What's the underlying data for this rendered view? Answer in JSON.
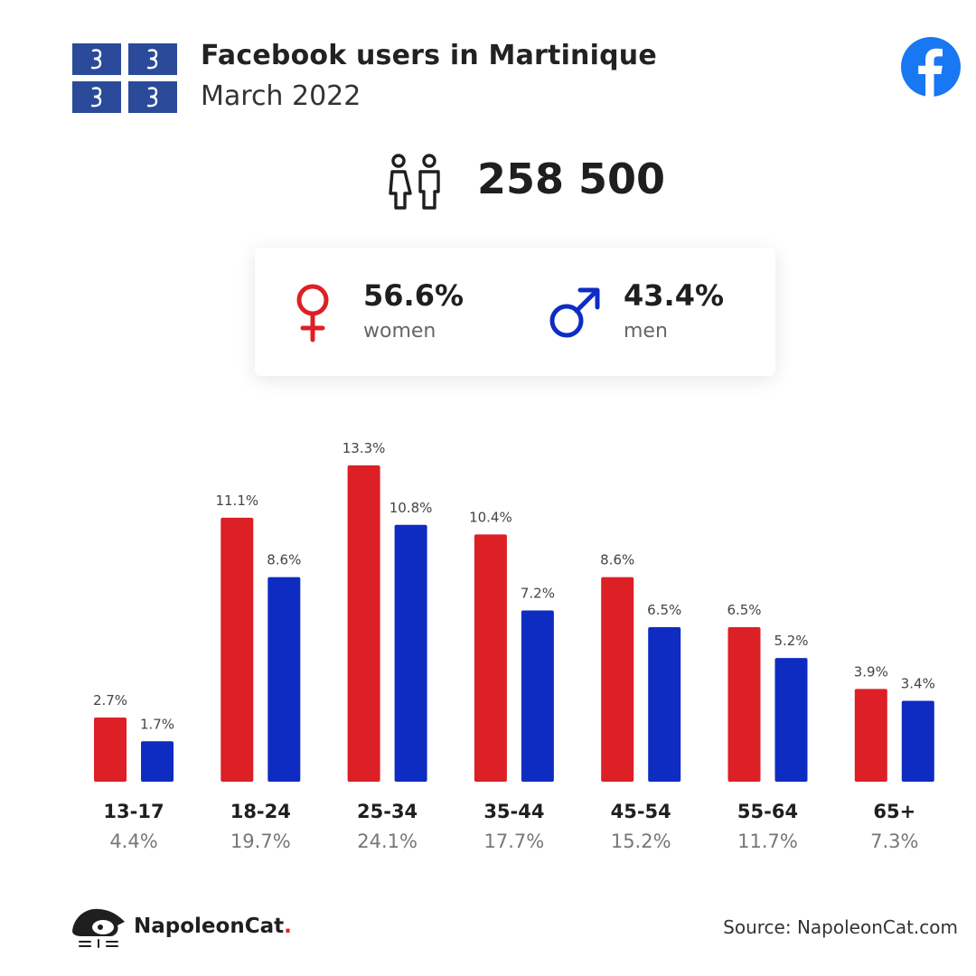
{
  "header": {
    "title": "Facebook users in Martinique",
    "subtitle": "March 2022"
  },
  "total_users": "258 500",
  "gender": {
    "female_pct": "56.6%",
    "female_label": "women",
    "male_pct": "43.4%",
    "male_label": "men"
  },
  "colors": {
    "women": "#dd1f26",
    "men": "#0f2cc2",
    "facebook": "#1877f2",
    "flag_blue": "#2b4b9a"
  },
  "chart_data": {
    "type": "bar",
    "categories": [
      "13-17",
      "18-24",
      "25-34",
      "35-44",
      "45-54",
      "55-64",
      "65+"
    ],
    "category_totals": [
      "4.4%",
      "19.7%",
      "24.1%",
      "17.7%",
      "15.2%",
      "11.7%",
      "7.3%"
    ],
    "series": [
      {
        "name": "women",
        "values": [
          2.7,
          11.1,
          13.3,
          10.4,
          8.6,
          6.5,
          3.9
        ]
      },
      {
        "name": "men",
        "values": [
          1.7,
          8.6,
          10.8,
          7.2,
          6.5,
          5.2,
          3.4
        ]
      }
    ],
    "value_suffix": "%",
    "ylim": [
      0,
      13.3
    ]
  },
  "footer": {
    "brand": "NapoleonCat",
    "brand_dot": ".",
    "source": "Source: NapoleonCat.com"
  },
  "icons": {
    "flag": "martinique-flag-icon",
    "facebook": "facebook-logo-icon",
    "users": "users-icon",
    "female": "female-symbol-icon",
    "male": "male-symbol-icon",
    "brand": "napoleoncat-logo-icon"
  }
}
